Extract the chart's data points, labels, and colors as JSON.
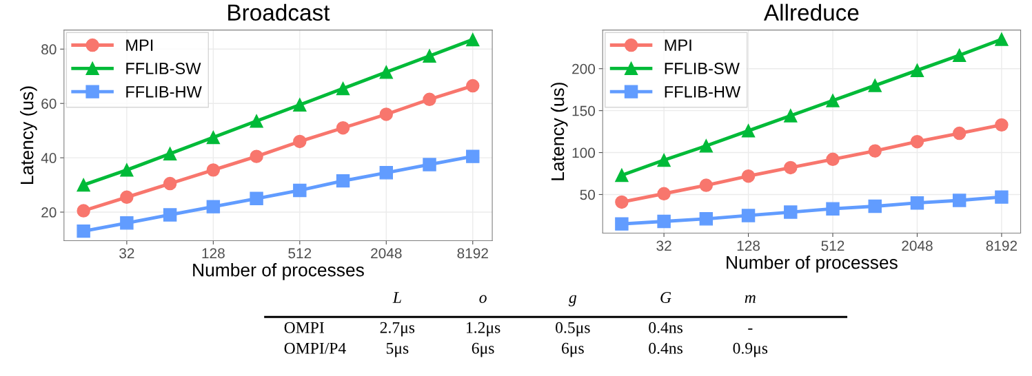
{
  "chart_data": [
    {
      "type": "line",
      "title": "Broadcast",
      "xlabel": "Number of processes",
      "ylabel": "Latency (us)",
      "log": "x",
      "x": [
        16,
        32,
        64,
        128,
        256,
        512,
        1024,
        2048,
        4096,
        8192
      ],
      "xlim": [
        11.7,
        11200
      ],
      "xticks": [
        32,
        128,
        512,
        2048,
        8192
      ],
      "ylim": [
        9.5,
        87
      ],
      "yticks": [
        20,
        40,
        60,
        80
      ],
      "grid": true,
      "legend": "top left",
      "series": [
        {
          "name": "MPI",
          "color": "#f8766d",
          "marker": "circle",
          "values": [
            20.5,
            25.5,
            30.5,
            35.5,
            40.5,
            46,
            51,
            56,
            61.5,
            66.5
          ]
        },
        {
          "name": "FFLIB-SW",
          "color": "#00ba38",
          "marker": "triangle",
          "values": [
            30,
            35.5,
            41.5,
            47.5,
            53.5,
            59.5,
            65.5,
            71.5,
            77.5,
            83.5
          ]
        },
        {
          "name": "FFLIB-HW",
          "color": "#619cff",
          "marker": "square",
          "values": [
            13,
            16,
            19,
            22,
            25,
            28,
            31.5,
            34.5,
            37.5,
            40.5
          ]
        }
      ]
    },
    {
      "type": "line",
      "title": "Allreduce",
      "xlabel": "Number of processes",
      "ylabel": "Latency (us)",
      "log": "x",
      "x": [
        16,
        32,
        64,
        128,
        256,
        512,
        1024,
        2048,
        4096,
        8192
      ],
      "xlim": [
        11.7,
        11200
      ],
      "xticks": [
        32,
        128,
        512,
        2048,
        8192
      ],
      "ylim": [
        4,
        246
      ],
      "yticks": [
        50,
        100,
        150,
        200
      ],
      "grid": true,
      "legend": "top left",
      "series": [
        {
          "name": "MPI",
          "color": "#f8766d",
          "marker": "circle",
          "values": [
            41,
            51,
            61,
            72,
            82,
            92,
            102,
            113,
            123,
            133
          ]
        },
        {
          "name": "FFLIB-SW",
          "color": "#00ba38",
          "marker": "triangle",
          "values": [
            73,
            91,
            108,
            126,
            144,
            162,
            180,
            198,
            216,
            235
          ]
        },
        {
          "name": "FFLIB-HW",
          "color": "#619cff",
          "marker": "square",
          "values": [
            15,
            18,
            21,
            25,
            29,
            33,
            36,
            40,
            43,
            47
          ]
        }
      ]
    },
    {
      "type": "other",
      "annotations": [
        "L",
        "o",
        "g",
        "G",
        "m",
        "OMPI",
        "2.7μs",
        "1.2μs",
        "0.5μs",
        "0.4ns",
        "-",
        "OMPI/P4",
        "5μs",
        "6μs",
        "6μs",
        "0.4ns",
        "0.9μs"
      ]
    }
  ]
}
